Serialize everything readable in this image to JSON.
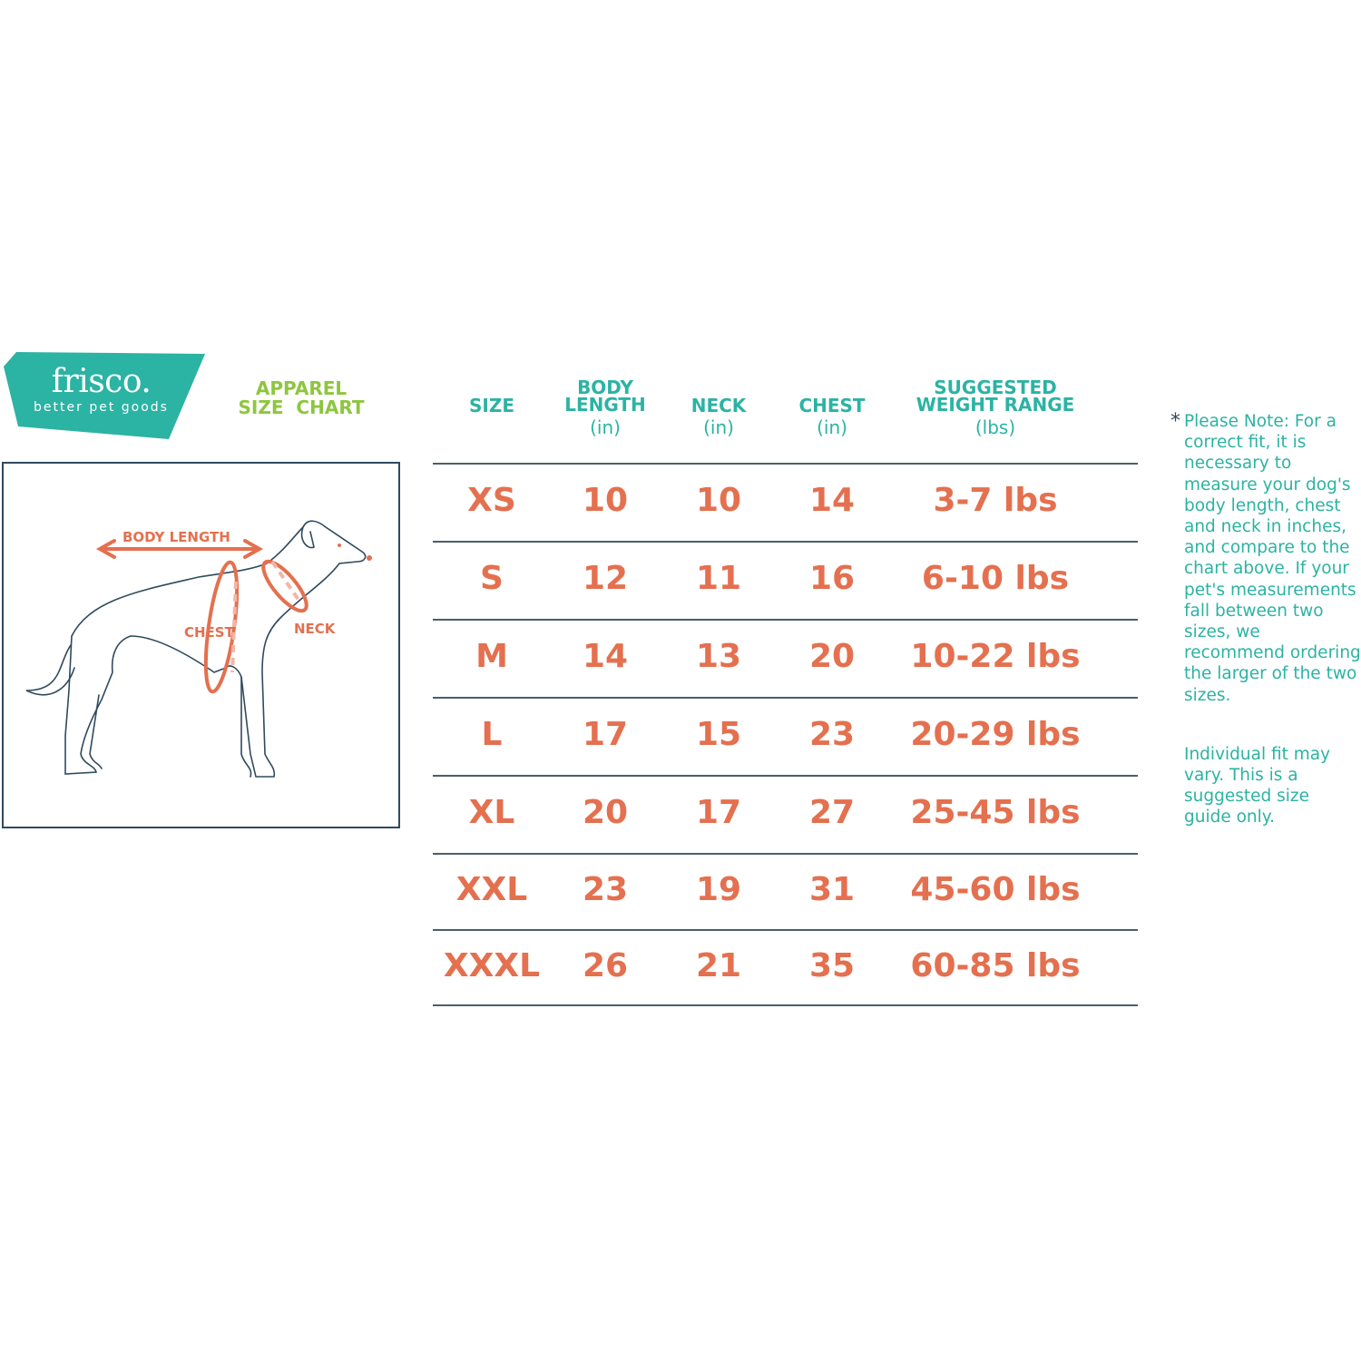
{
  "brand": {
    "name": "frisco.",
    "tagline": "better pet goods",
    "color": "#2bb3a3"
  },
  "title": {
    "line1": "APPAREL",
    "line2": "SIZE  CHART",
    "color": "#8dc63f"
  },
  "diagram": {
    "labels": {
      "body_length": "BODY LENGTH",
      "chest": "CHEST",
      "neck": "NECK"
    },
    "accent": "#e4704f"
  },
  "table": {
    "headers": [
      {
        "title": "SIZE",
        "unit": ""
      },
      {
        "title": "BODY LENGTH",
        "unit": "(in)"
      },
      {
        "title": "NECK",
        "unit": "(in)"
      },
      {
        "title": "CHEST",
        "unit": "(in)"
      },
      {
        "title": "SUGGESTED WEIGHT RANGE",
        "unit": "(lbs)"
      }
    ],
    "rows": [
      [
        "XS",
        "10",
        "10",
        "14",
        "3-7 lbs"
      ],
      [
        "S",
        "12",
        "11",
        "16",
        "6-10 lbs"
      ],
      [
        "M",
        "14",
        "13",
        "20",
        "10-22 lbs"
      ],
      [
        "L",
        "17",
        "15",
        "23",
        "20-29 lbs"
      ],
      [
        "XL",
        "20",
        "17",
        "27",
        "25-45 lbs"
      ],
      [
        "XXL",
        "23",
        "19",
        "31",
        "45-60 lbs"
      ],
      [
        "XXXL",
        "26",
        "21",
        "35",
        "60-85 lbs"
      ]
    ]
  },
  "note": {
    "asterisk": "*",
    "paragraph1": "Please Note: For a correct fit, it is necessary to measure your dog's body length, chest and neck in inches, and compare to the chart above. If your pet's measurements fall between two sizes, we recommend ordering the larger of the two sizes.",
    "paragraph2": "Individual fit may vary. This is a suggested size guide only."
  }
}
